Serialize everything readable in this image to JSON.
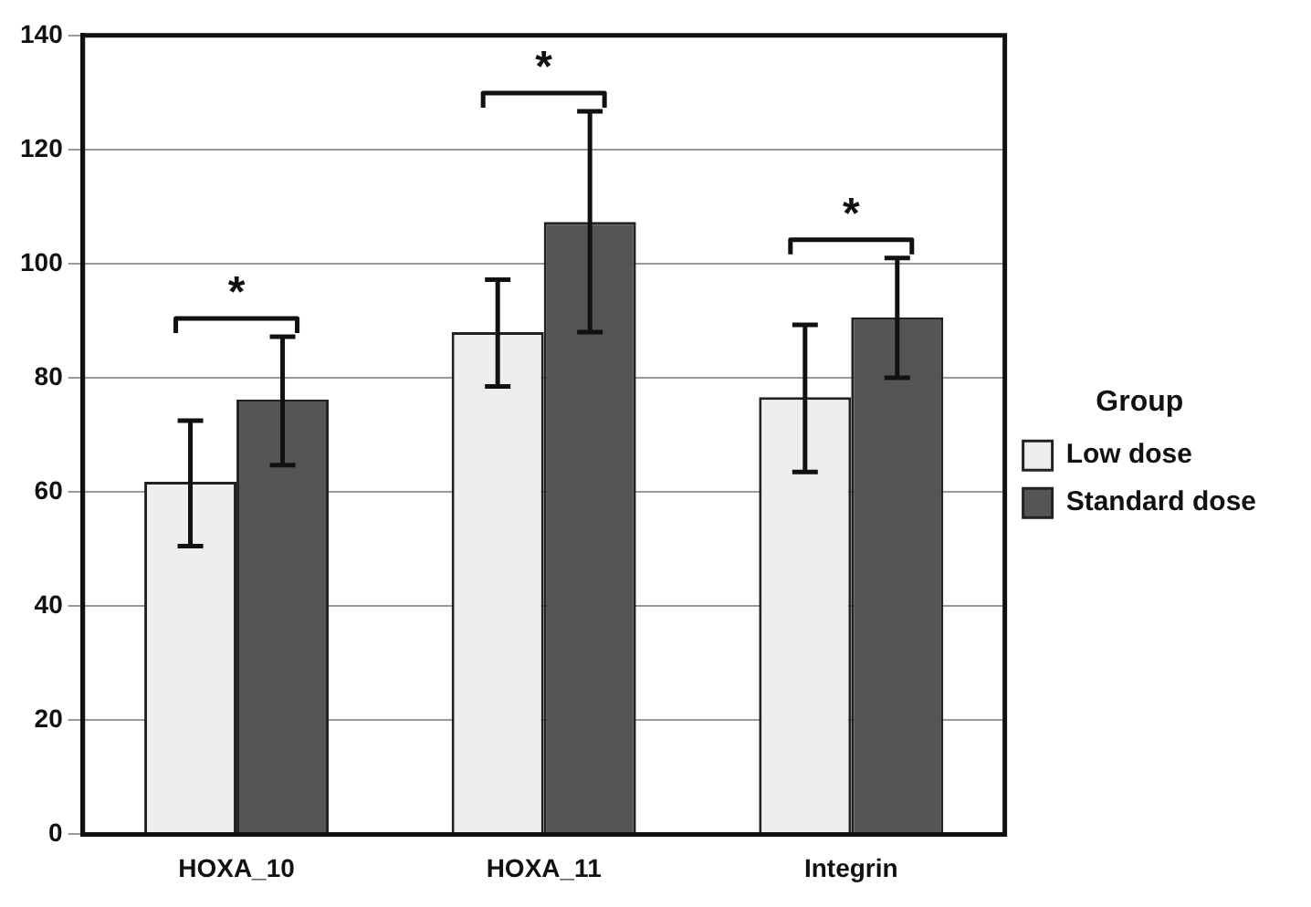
{
  "chart_data": {
    "type": "bar",
    "categories": [
      "HOXA_10",
      "HOXA_11",
      "Integrin"
    ],
    "series": [
      {
        "name": "Low dose",
        "color": "#eeeeee",
        "values": [
          61.8,
          88,
          76.6
        ],
        "errors": [
          [
            50.5,
            72.5
          ],
          [
            78.5,
            97.2
          ],
          [
            63.5,
            89.3
          ]
        ]
      },
      {
        "name": "Standard dose",
        "color": "#555555",
        "values": [
          76.2,
          107.3,
          90.6
        ],
        "errors": [
          [
            64.7,
            87.2
          ],
          [
            88,
            126.7
          ],
          [
            80,
            101
          ]
        ]
      }
    ],
    "legend_title": "Group",
    "legend": "right",
    "ylim": [
      0,
      140
    ],
    "yticks": [
      0,
      20,
      40,
      60,
      80,
      100,
      120,
      140
    ],
    "grid": "y",
    "annotations": [
      "*",
      "*",
      "*"
    ]
  }
}
